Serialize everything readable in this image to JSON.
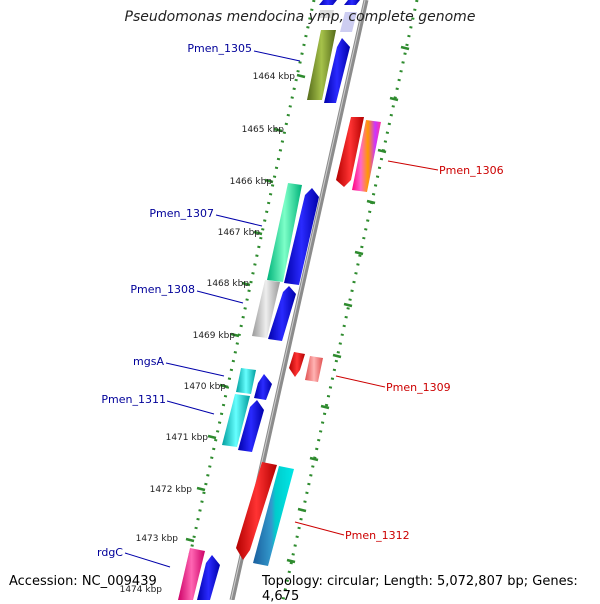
{
  "map": {
    "title": "Pseudomonas mendocina ymp, complete genome",
    "accession": "Accession: NC_009439",
    "topology": "Topology: circular; Length: 5,072,807 bp; Genes: 4,675"
  },
  "ticks": [
    {
      "label": "1464 kbp"
    },
    {
      "label": "1465 kbp"
    },
    {
      "label": "1466 kbp"
    },
    {
      "label": "1467 kbp"
    },
    {
      "label": "1468 kbp"
    },
    {
      "label": "1469 kbp"
    },
    {
      "label": "1470 kbp"
    },
    {
      "label": "1471 kbp"
    },
    {
      "label": "1472 kbp"
    },
    {
      "label": "1473 kbp"
    },
    {
      "label": "1474 kbp"
    }
  ],
  "genes": [
    {
      "name": "Pmen_1305",
      "strand": "minus",
      "color": "#6b8e23"
    },
    {
      "name": "Pmen_1306",
      "strand": "plus",
      "color": "#e6004c"
    },
    {
      "name": "Pmen_1307",
      "strand": "minus",
      "color": "#00d98c"
    },
    {
      "name": "Pmen_1308",
      "strand": "minus",
      "color": "#b3b3b3"
    },
    {
      "name": "Pmen_1309",
      "strand": "plus",
      "color": "#ff7373"
    },
    {
      "name": "mgsA",
      "strand": "minus",
      "color": "#00c8c8"
    },
    {
      "name": "Pmen_1311",
      "strand": "minus",
      "color": "#00c8c8"
    },
    {
      "name": "Pmen_1312",
      "strand": "plus",
      "color": "#00b3b3"
    },
    {
      "name": "rdgC",
      "strand": "minus",
      "color": "#ff1493"
    }
  ],
  "colors": {
    "minus_label": "#000099",
    "plus_label": "#cc0000",
    "cds": "#0000ee",
    "ruler": "#228b22",
    "backbone": "#888888"
  }
}
